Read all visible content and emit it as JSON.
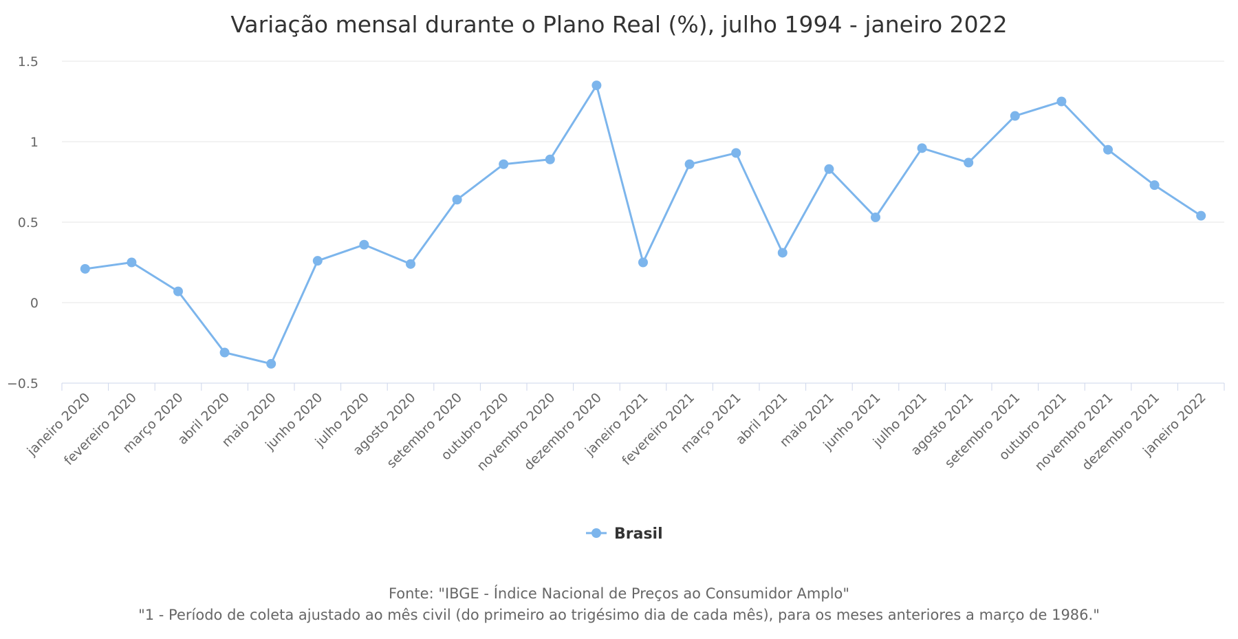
{
  "chart_data": {
    "type": "line",
    "title": "Variação mensal durante o Plano Real (%), julho 1994 - janeiro 2022",
    "xlabel": "",
    "ylabel": "",
    "ylim": [
      -0.5,
      1.5
    ],
    "yticks": [
      "1.5",
      "1",
      "0.5",
      "0",
      "−0.5"
    ],
    "ytick_values": [
      1.5,
      1,
      0.5,
      0,
      -0.5
    ],
    "grid": true,
    "legend_position": "bottom-center",
    "categories": [
      "janeiro 2020",
      "fevereiro 2020",
      "março 2020",
      "abril 2020",
      "maio 2020",
      "junho 2020",
      "julho 2020",
      "agosto 2020",
      "setembro 2020",
      "outubro 2020",
      "novembro 2020",
      "dezembro 2020",
      "janeiro 2021",
      "fevereiro 2021",
      "março 2021",
      "abril 2021",
      "maio 2021",
      "junho 2021",
      "julho 2021",
      "agosto 2021",
      "setembro 2021",
      "outubro 2021",
      "novembro 2021",
      "dezembro 2021",
      "janeiro 2022"
    ],
    "series": [
      {
        "name": "Brasil",
        "color": "#7cb5ec",
        "values": [
          0.21,
          0.25,
          0.07,
          -0.31,
          -0.38,
          0.26,
          0.36,
          0.24,
          0.64,
          0.86,
          0.89,
          1.35,
          0.25,
          0.86,
          0.93,
          0.31,
          0.83,
          0.53,
          0.96,
          0.87,
          1.16,
          1.25,
          0.95,
          0.73,
          0.54
        ]
      }
    ],
    "credits": [
      "Fonte: \"IBGE - Índice Nacional de Preços ao Consumidor Amplo\"",
      "\"1 - Período de coleta ajustado ao mês civil (do primeiro ao trigésimo dia de cada mês), para os meses anteriores a março de 1986.\""
    ]
  },
  "colors": {
    "series": "#7cb5ec",
    "grid": "#e6e6e6",
    "axis": "#ccd6eb",
    "text": "#333333",
    "muted": "#666666"
  }
}
